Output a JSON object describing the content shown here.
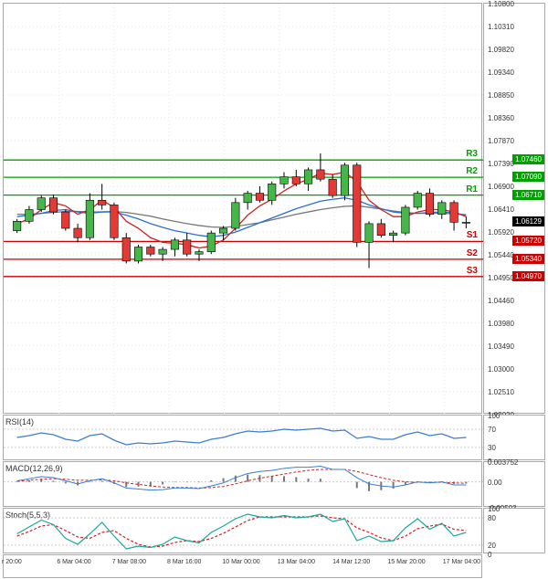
{
  "main": {
    "ylim": [
      1.0202,
      1.108
    ],
    "yticks": [
      1.0202,
      1.0251,
      1.03,
      1.0349,
      1.0398,
      1.0446,
      1.0495,
      1.0544,
      1.0592,
      1.0641,
      1.069,
      1.0739,
      1.0787,
      1.0836,
      1.0885,
      1.0934,
      1.0982,
      1.1031,
      1.108
    ],
    "current_price": 1.06129,
    "sr": {
      "R3": {
        "value": 1.0746,
        "color": "#00a000"
      },
      "R2": {
        "value": 1.0709,
        "color": "#00a000"
      },
      "R1": {
        "value": 1.0671,
        "color": "#00a000"
      },
      "S1": {
        "value": 1.0572,
        "color": "#cc0000"
      },
      "S2": {
        "value": 1.0534,
        "color": "#cc0000"
      },
      "S3": {
        "value": 1.0497,
        "color": "#cc0000"
      }
    },
    "colors": {
      "up_fill": "#46b64a",
      "up_border": "#000",
      "down_fill": "#e53935",
      "down_border": "#000",
      "ma_red": "#cc2222",
      "ma_blue": "#2a6fd6",
      "ma_gray": "#777"
    },
    "candles": [
      {
        "o": 1.0595,
        "h": 1.062,
        "l": 1.059,
        "c": 1.0615
      },
      {
        "o": 1.0615,
        "h": 1.0648,
        "l": 1.061,
        "c": 1.064
      },
      {
        "o": 1.064,
        "h": 1.067,
        "l": 1.0635,
        "c": 1.0665
      },
      {
        "o": 1.0665,
        "h": 1.0672,
        "l": 1.063,
        "c": 1.0635
      },
      {
        "o": 1.0635,
        "h": 1.064,
        "l": 1.0595,
        "c": 1.06
      },
      {
        "o": 1.06,
        "h": 1.061,
        "l": 1.057,
        "c": 1.058
      },
      {
        "o": 1.058,
        "h": 1.0675,
        "l": 1.0575,
        "c": 1.066
      },
      {
        "o": 1.066,
        "h": 1.0695,
        "l": 1.064,
        "c": 1.065
      },
      {
        "o": 1.065,
        "h": 1.0655,
        "l": 1.0575,
        "c": 1.058
      },
      {
        "o": 1.058,
        "h": 1.059,
        "l": 1.0525,
        "c": 1.053
      },
      {
        "o": 1.053,
        "h": 1.0565,
        "l": 1.0525,
        "c": 1.056
      },
      {
        "o": 1.056,
        "h": 1.0565,
        "l": 1.054,
        "c": 1.0545
      },
      {
        "o": 1.0545,
        "h": 1.056,
        "l": 1.053,
        "c": 1.0555
      },
      {
        "o": 1.0555,
        "h": 1.058,
        "l": 1.054,
        "c": 1.0575
      },
      {
        "o": 1.0575,
        "h": 1.059,
        "l": 1.054,
        "c": 1.0545
      },
      {
        "o": 1.0545,
        "h": 1.0555,
        "l": 1.053,
        "c": 1.055
      },
      {
        "o": 1.055,
        "h": 1.0595,
        "l": 1.0545,
        "c": 1.059
      },
      {
        "o": 1.059,
        "h": 1.0605,
        "l": 1.0575,
        "c": 1.06
      },
      {
        "o": 1.06,
        "h": 1.0665,
        "l": 1.0595,
        "c": 1.0655
      },
      {
        "o": 1.0655,
        "h": 1.068,
        "l": 1.064,
        "c": 1.0675
      },
      {
        "o": 1.0675,
        "h": 1.069,
        "l": 1.0655,
        "c": 1.066
      },
      {
        "o": 1.066,
        "h": 1.07,
        "l": 1.065,
        "c": 1.0695
      },
      {
        "o": 1.0695,
        "h": 1.072,
        "l": 1.0685,
        "c": 1.071
      },
      {
        "o": 1.071,
        "h": 1.0725,
        "l": 1.069,
        "c": 1.0695
      },
      {
        "o": 1.0695,
        "h": 1.073,
        "l": 1.068,
        "c": 1.0725
      },
      {
        "o": 1.0725,
        "h": 1.076,
        "l": 1.07,
        "c": 1.0705
      },
      {
        "o": 1.0705,
        "h": 1.0715,
        "l": 1.0665,
        "c": 1.067
      },
      {
        "o": 1.067,
        "h": 1.074,
        "l": 1.066,
        "c": 1.0735
      },
      {
        "o": 1.0735,
        "h": 1.074,
        "l": 1.056,
        "c": 1.057
      },
      {
        "o": 1.057,
        "h": 1.0615,
        "l": 1.0515,
        "c": 1.061
      },
      {
        "o": 1.061,
        "h": 1.062,
        "l": 1.058,
        "c": 1.0585
      },
      {
        "o": 1.0585,
        "h": 1.0595,
        "l": 1.057,
        "c": 1.059
      },
      {
        "o": 1.059,
        "h": 1.065,
        "l": 1.0585,
        "c": 1.0645
      },
      {
        "o": 1.0645,
        "h": 1.068,
        "l": 1.064,
        "c": 1.0675
      },
      {
        "o": 1.0675,
        "h": 1.0685,
        "l": 1.0625,
        "c": 1.063
      },
      {
        "o": 1.063,
        "h": 1.066,
        "l": 1.062,
        "c": 1.0655
      },
      {
        "o": 1.0655,
        "h": 1.066,
        "l": 1.0595,
        "c": 1.0613
      },
      {
        "o": 1.0613,
        "h": 1.0625,
        "l": 1.06,
        "c": 1.0613
      }
    ],
    "ma_red_pts": [
      1.061,
      1.062,
      1.064,
      1.0655,
      1.0648,
      1.063,
      1.064,
      1.066,
      1.0645,
      1.0615,
      1.06,
      1.058,
      1.057,
      1.0568,
      1.0565,
      1.0558,
      1.0562,
      1.0575,
      1.06,
      1.0628,
      1.0648,
      1.0662,
      1.068,
      1.0695,
      1.0705,
      1.0718,
      1.0715,
      1.072,
      1.07,
      1.066,
      1.064,
      1.0625,
      1.0625,
      1.0635,
      1.064,
      1.064,
      1.0635,
      1.0625
    ],
    "ma_blue_pts": [
      1.0625,
      1.0628,
      1.0632,
      1.0638,
      1.064,
      1.0635,
      1.0632,
      1.0635,
      1.0635,
      1.0628,
      1.062,
      1.061,
      1.0602,
      1.0595,
      1.059,
      1.0585,
      1.0582,
      1.0585,
      1.0592,
      1.0602,
      1.0612,
      1.0622,
      1.0632,
      1.0642,
      1.065,
      1.0658,
      1.0662,
      1.0665,
      1.066,
      1.065,
      1.0642,
      1.0635,
      1.0632,
      1.0632,
      1.0634,
      1.0635,
      1.0633,
      1.0628
    ],
    "ma_gray_pts": [
      1.063,
      1.063,
      1.0632,
      1.0634,
      1.0636,
      1.0636,
      1.0635,
      1.0635,
      1.0636,
      1.0634,
      1.063,
      1.0626,
      1.062,
      1.0615,
      1.061,
      1.0606,
      1.0603,
      1.0602,
      1.0604,
      1.0608,
      1.0612,
      1.0618,
      1.0624,
      1.063,
      1.0635,
      1.064,
      1.0644,
      1.0647,
      1.0648,
      1.0645,
      1.0641,
      1.0637,
      1.0634,
      1.0632,
      1.0632,
      1.0632,
      1.0631,
      1.0629
    ]
  },
  "x_labels": [
    "r 20:00",
    "6 Mar 04:00",
    "7 Mar 08:00",
    "8 Mar 16:00",
    "10 Mar 00:00",
    "13 Mar 04:00",
    "14 Mar 12:00",
    "15 Mar 20:00",
    "17 Mar 04:00"
  ],
  "rsi": {
    "label": "RSI(14)",
    "yticks": [
      0,
      30,
      70,
      100
    ],
    "color": "#3b7dd8",
    "values": [
      52,
      56,
      62,
      58,
      48,
      44,
      56,
      60,
      46,
      36,
      40,
      38,
      40,
      44,
      42,
      40,
      48,
      52,
      60,
      66,
      64,
      66,
      70,
      68,
      70,
      72,
      66,
      68,
      50,
      54,
      48,
      48,
      58,
      64,
      56,
      60,
      50,
      52
    ]
  },
  "macd": {
    "label": "MACD(12,26,9)",
    "yticks": [
      -0.00503,
      0.0,
      0.003752
    ],
    "macd_color": "#3b7dd8",
    "signal_color": "#cc2222",
    "hist_color": "#777",
    "macd_vals": [
      0.0002,
      0.0006,
      0.001,
      0.0008,
      0.0002,
      -0.0004,
      0.0002,
      0.0006,
      -0.0002,
      -0.0012,
      -0.0014,
      -0.0016,
      -0.0015,
      -0.0012,
      -0.0012,
      -0.0013,
      -0.0008,
      -0.0002,
      0.0008,
      0.0016,
      0.002,
      0.0022,
      0.0026,
      0.0028,
      0.0028,
      0.003,
      0.0024,
      0.0024,
      0.0008,
      -0.0004,
      -0.0008,
      -0.001,
      -0.0006,
      0.0,
      -0.0002,
      0.0,
      -0.0006,
      -0.0006
    ],
    "signal_vals": [
      0.0001,
      0.0003,
      0.0005,
      0.0006,
      0.0005,
      0.0003,
      0.0003,
      0.0004,
      0.0002,
      -0.0002,
      -0.0005,
      -0.0008,
      -0.001,
      -0.0011,
      -0.0011,
      -0.0012,
      -0.0011,
      -0.0009,
      -0.0004,
      0.0002,
      0.0007,
      0.0011,
      0.0015,
      0.0019,
      0.0022,
      0.0024,
      0.0024,
      0.0024,
      0.002,
      0.0014,
      0.0008,
      0.0003,
      0.0,
      -0.0001,
      -0.0001,
      -0.0001,
      -0.0002,
      -0.0003
    ]
  },
  "stoch": {
    "label": "Stoch(5,5,3)",
    "yticks": [
      0,
      20,
      80,
      100
    ],
    "k_color": "#19a89a",
    "d_color": "#cc2222",
    "k_vals": [
      45,
      60,
      75,
      65,
      35,
      22,
      45,
      70,
      40,
      12,
      18,
      15,
      22,
      38,
      30,
      25,
      48,
      62,
      78,
      88,
      82,
      80,
      85,
      80,
      82,
      88,
      72,
      78,
      30,
      40,
      28,
      30,
      58,
      78,
      55,
      68,
      40,
      48
    ],
    "d_vals": [
      40,
      50,
      62,
      65,
      52,
      38,
      35,
      48,
      52,
      35,
      22,
      16,
      18,
      26,
      30,
      28,
      35,
      46,
      60,
      74,
      82,
      82,
      82,
      82,
      82,
      84,
      80,
      78,
      58,
      48,
      36,
      30,
      40,
      56,
      62,
      66,
      55,
      52
    ]
  }
}
